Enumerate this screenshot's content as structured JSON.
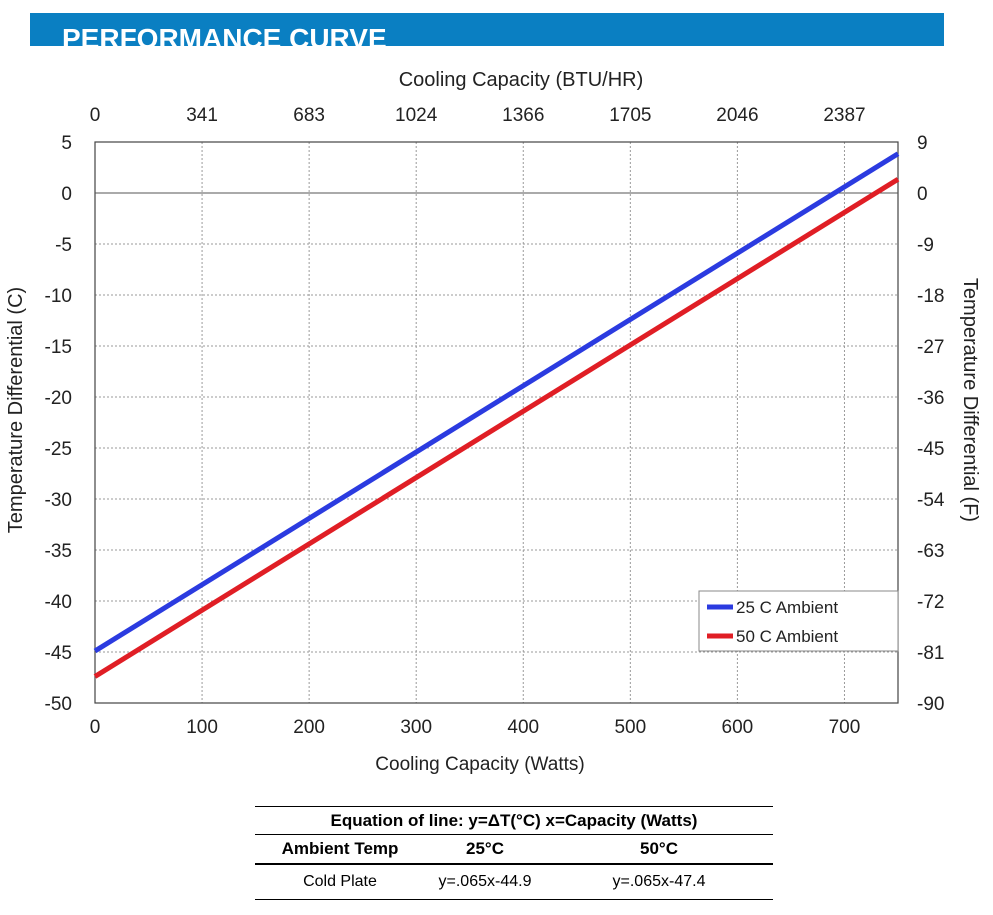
{
  "header": {
    "title": "PERFORMANCE CURVE"
  },
  "chart_data": {
    "type": "line",
    "title": "",
    "xlabel": "Cooling Capacity (Watts)",
    "ylabel": "Temperature Differential (C)",
    "x2label": "Cooling Capacity (BTU/HR)",
    "y2label": "Temperature Differential (F)",
    "xlim": [
      0,
      750
    ],
    "ylim": [
      -50,
      5
    ],
    "x_ticks": [
      0,
      100,
      200,
      300,
      400,
      500,
      600,
      700
    ],
    "x_tick_labels": [
      "0",
      "100",
      "200",
      "300",
      "400",
      "500",
      "600",
      "700"
    ],
    "y_ticks": [
      5,
      0,
      -5,
      -10,
      -15,
      -20,
      -25,
      -30,
      -35,
      -40,
      -45,
      -50
    ],
    "y_tick_labels": [
      "5",
      "0",
      "-5",
      "-10",
      "-15",
      "-20",
      "-25",
      "-30",
      "-35",
      "-40",
      "-45",
      "-50"
    ],
    "x2_tick_labels": [
      "0",
      "341",
      "683",
      "1024",
      "1366",
      "1705",
      "2046",
      "2387"
    ],
    "y2_tick_labels": [
      "9",
      "0",
      "-9",
      "-18",
      "-27",
      "-36",
      "-45",
      "-54",
      "-63",
      "-72",
      "-81",
      "-90"
    ],
    "grid": true,
    "legend_position": "bottom-right",
    "series": [
      {
        "name": "25 C Ambient",
        "color": "#2b3be0",
        "x": [
          0,
          750
        ],
        "y": [
          -44.9,
          3.85
        ]
      },
      {
        "name": "50 C Ambient",
        "color": "#e01e25",
        "x": [
          0,
          750
        ],
        "y": [
          -47.4,
          1.35
        ]
      }
    ]
  },
  "equation_table": {
    "title": "Equation of line: y=ΔT(°C)  x=Capacity (Watts)",
    "headers": [
      "Ambient Temp",
      "25°C",
      "50°C"
    ],
    "rows": [
      [
        "Cold Plate",
        "y=.065x-44.9",
        "y=.065x-47.4"
      ]
    ]
  }
}
